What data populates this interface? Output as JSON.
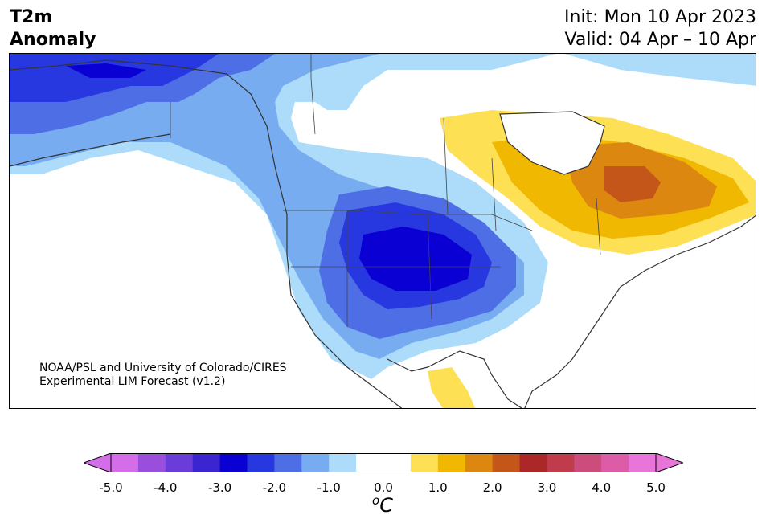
{
  "title": {
    "line1": "T2m",
    "line2": "Anomaly"
  },
  "init": "Init: Mon 10 Apr 2023",
  "valid": "Valid: 04 Apr – 10 Apr",
  "credit": {
    "line1": "NOAA/PSL and University of Colorado/CIRES",
    "line2": "Experimental LIM Forecast (v1.2)"
  },
  "colorbar": {
    "ticks": [
      "-5.0",
      "-4.0",
      "-3.0",
      "-2.0",
      "-1.0",
      "0.0",
      "1.0",
      "2.0",
      "3.0",
      "4.0",
      "5.0"
    ],
    "units": "C",
    "units_sup": "o",
    "colors": [
      "#d46ee8",
      "#9a4fdc",
      "#6a3ddb",
      "#3b25d0",
      "#0a00d4",
      "#2838e0",
      "#4e6ee6",
      "#77acf0",
      "#acdcfa",
      "#ffffff",
      "#ffffff",
      "#fde053",
      "#f0b800",
      "#dc8710",
      "#c4561a",
      "#ac2828",
      "#c03c4c",
      "#cc4c7c",
      "#dc5ca8",
      "#e876d8"
    ],
    "under_color": "#d46ee8",
    "over_color": "#e876d8"
  }
}
